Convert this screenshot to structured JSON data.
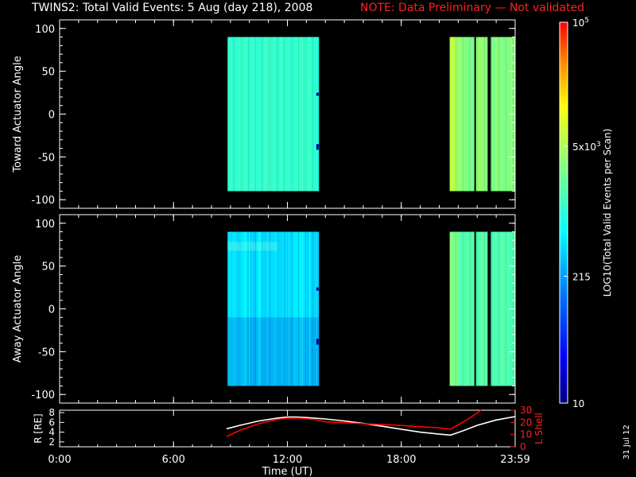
{
  "title": "TWINS2: Total Valid Events:  5 Aug (day 218), 2008",
  "note": "NOTE: Data Preliminary — Not validated",
  "side_date": "31 Jul 12",
  "colors": {
    "background": "#000000",
    "axes": "#ffffff",
    "note": "#ff0000",
    "r_line": "#ffffff",
    "lshell_line": "#ff0000"
  },
  "colorbar": {
    "label": "LOG10(Total Valid Events per Scan)",
    "scale": "log",
    "range": [
      10,
      100000
    ],
    "tick_labels": [
      "10",
      "215",
      "5x10^3",
      "10^5"
    ],
    "tick_values": [
      10,
      215,
      5000,
      100000
    ]
  },
  "chart_data": [
    {
      "type": "heatmap",
      "ylabel": "Toward Actuator Angle",
      "xlim": [
        0,
        24
      ],
      "ylim": [
        -110,
        110
      ],
      "yticks": [
        100,
        50,
        0,
        -50,
        -100
      ],
      "data_y_range": [
        -90,
        90
      ],
      "blocks": [
        {
          "t_start": 8.85,
          "t_end": 13.65,
          "level": 0.52,
          "variant": "toward1"
        },
        {
          "t_start": 20.55,
          "t_end": 24.0,
          "level": 0.62,
          "variant": "toward2"
        }
      ]
    },
    {
      "type": "heatmap",
      "ylabel": "Away Actuator Angle",
      "xlim": [
        0,
        24
      ],
      "ylim": [
        -110,
        110
      ],
      "yticks": [
        100,
        50,
        0,
        -50,
        -100
      ],
      "data_y_range": [
        -90,
        90
      ],
      "blocks": [
        {
          "t_start": 8.85,
          "t_end": 13.65,
          "level": 0.42,
          "variant": "away1"
        },
        {
          "t_start": 20.55,
          "t_end": 24.0,
          "level": 0.55,
          "variant": "away2"
        }
      ]
    },
    {
      "type": "line",
      "xlabel": "Time (UT)",
      "xlim": [
        0,
        24
      ],
      "xtick_labels": [
        "0:00",
        "6:00",
        "12:00",
        "18:00",
        "23:59"
      ],
      "xtick_values": [
        0,
        6,
        12,
        18,
        24
      ],
      "ylabel_left": "R [RE]",
      "ylim_left": [
        1,
        8.5
      ],
      "yticks_left": [
        2,
        4,
        6,
        8
      ],
      "ylabel_right": "L Shell",
      "ylim_right": [
        0,
        30
      ],
      "yticks_right": [
        0,
        10,
        20,
        30
      ],
      "series": [
        {
          "axis": "left",
          "x": [
            8.8,
            9.5,
            10.5,
            11.5,
            12.0,
            12.5,
            13.0,
            14.0,
            15.0,
            16.0,
            17.0,
            18.0,
            19.0,
            20.0,
            20.6,
            21.2,
            22.0,
            23.0,
            24.0
          ],
          "y": [
            4.7,
            5.4,
            6.3,
            6.9,
            7.1,
            7.1,
            7.0,
            6.7,
            6.3,
            5.8,
            5.2,
            4.6,
            4.0,
            3.6,
            3.4,
            4.2,
            5.4,
            6.5,
            7.2
          ]
        },
        {
          "axis": "right",
          "x": [
            8.8,
            9.5,
            10.5,
            11.5,
            12.0,
            12.6,
            13.4,
            14.0,
            16.0,
            18.0,
            20.0,
            20.6,
            21.5,
            22.2
          ],
          "y": [
            8.5,
            13.5,
            19.0,
            22.5,
            23.5,
            23.5,
            22.5,
            20.5,
            19.0,
            17.5,
            15.5,
            14.5,
            22.5,
            30.0
          ]
        }
      ]
    }
  ]
}
